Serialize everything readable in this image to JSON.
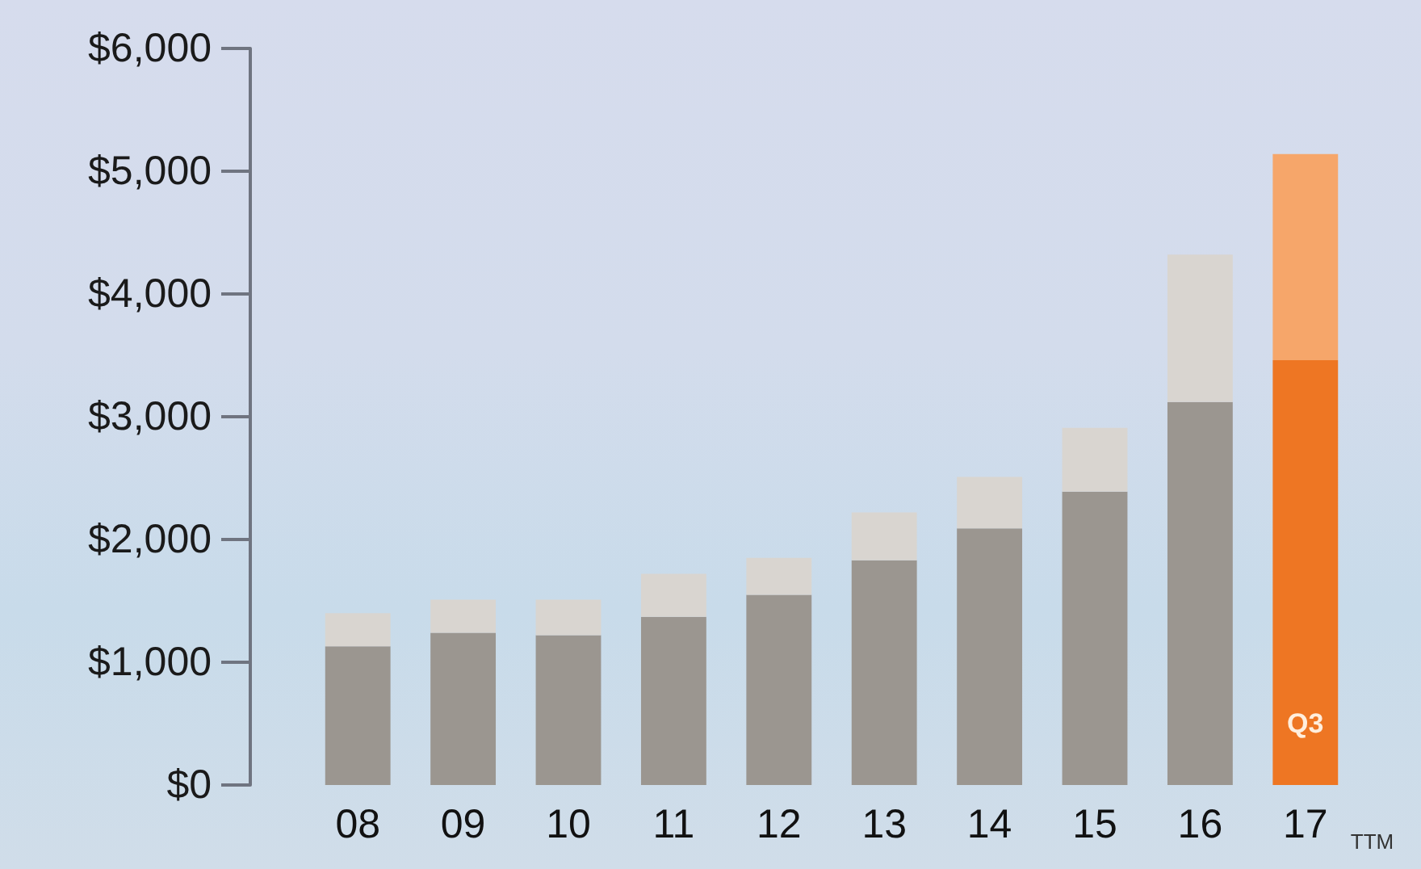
{
  "chart_data": {
    "type": "bar",
    "stacked": true,
    "categories": [
      "08",
      "09",
      "10",
      "11",
      "12",
      "13",
      "14",
      "15",
      "16",
      "17"
    ],
    "series": [
      {
        "colors": [
          "#9b9690",
          "#9b9690",
          "#9b9690",
          "#9b9690",
          "#9b9690",
          "#9b9690",
          "#9b9690",
          "#9b9690",
          "#9b9690",
          "#ee7623"
        ],
        "values": [
          1130,
          1240,
          1220,
          1370,
          1550,
          1830,
          2090,
          2390,
          3120,
          3460
        ]
      },
      {
        "colors": [
          "#d9d5d0",
          "#d9d5d0",
          "#d9d5d0",
          "#d9d5d0",
          "#d9d5d0",
          "#d9d5d0",
          "#d9d5d0",
          "#d9d5d0",
          "#d9d5d0",
          "#f6a66a"
        ],
        "values": [
          270,
          270,
          290,
          350,
          300,
          390,
          420,
          520,
          1200,
          1680
        ]
      }
    ],
    "ylim": [
      0,
      6000
    ],
    "yticks": [
      {
        "value": 0,
        "label": "$0"
      },
      {
        "value": 1000,
        "label": "$1,000"
      },
      {
        "value": 2000,
        "label": "$2,000"
      },
      {
        "value": 3000,
        "label": "$3,000"
      },
      {
        "value": 4000,
        "label": "$4,000"
      },
      {
        "value": 5000,
        "label": "$5,000"
      },
      {
        "value": 6000,
        "label": "$6,000"
      }
    ],
    "grid": false,
    "annotations": [
      "Q3",
      "TTM"
    ]
  }
}
